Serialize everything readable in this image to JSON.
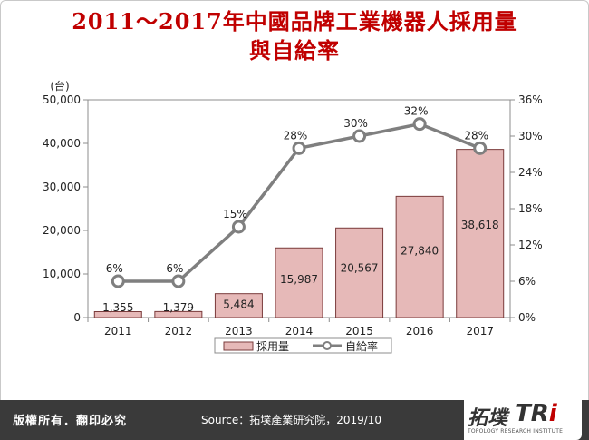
{
  "title": {
    "line1": "2011～2017年中國品牌工業機器人採用量",
    "line2": "與自給率"
  },
  "footer": {
    "copyright": "版權所有．翻印必究",
    "source": "Source：拓墣產業研究院，2019/10"
  },
  "logo": {
    "chinese": "拓墣",
    "latin_main": "TR",
    "latin_accent": "i",
    "subtitle": "TOPOLOGY RESEARCH INSTITUTE"
  },
  "chart_data": {
    "type": "bar",
    "categories": [
      "2011",
      "2012",
      "2013",
      "2014",
      "2015",
      "2016",
      "2017"
    ],
    "series": [
      {
        "name": "採用量",
        "type": "bar",
        "axis": "left",
        "values": [
          1355,
          1379,
          5484,
          15987,
          20567,
          27840,
          38618
        ],
        "labels": [
          "1,355",
          "1,379",
          "5,484",
          "15,987",
          "20,567",
          "27,840",
          "38,618"
        ],
        "color": "#e6b9b8"
      },
      {
        "name": "自給率",
        "type": "line",
        "axis": "right",
        "values": [
          6,
          6,
          15,
          28,
          30,
          32,
          28
        ],
        "labels": [
          "6%",
          "6%",
          "15%",
          "28%",
          "30%",
          "32%",
          "28%"
        ],
        "color": "#7f7f7f"
      }
    ],
    "y_left": {
      "unit_label": "(台)",
      "ylim": [
        0,
        50000
      ],
      "ticks": [
        "0",
        "10,000",
        "20,000",
        "30,000",
        "40,000",
        "50,000"
      ]
    },
    "y_right": {
      "ylim": [
        0,
        36
      ],
      "ticks": [
        "0%",
        "6%",
        "12%",
        "18%",
        "24%",
        "30%",
        "36%"
      ]
    },
    "grid": false,
    "legend_position": "bottom"
  }
}
